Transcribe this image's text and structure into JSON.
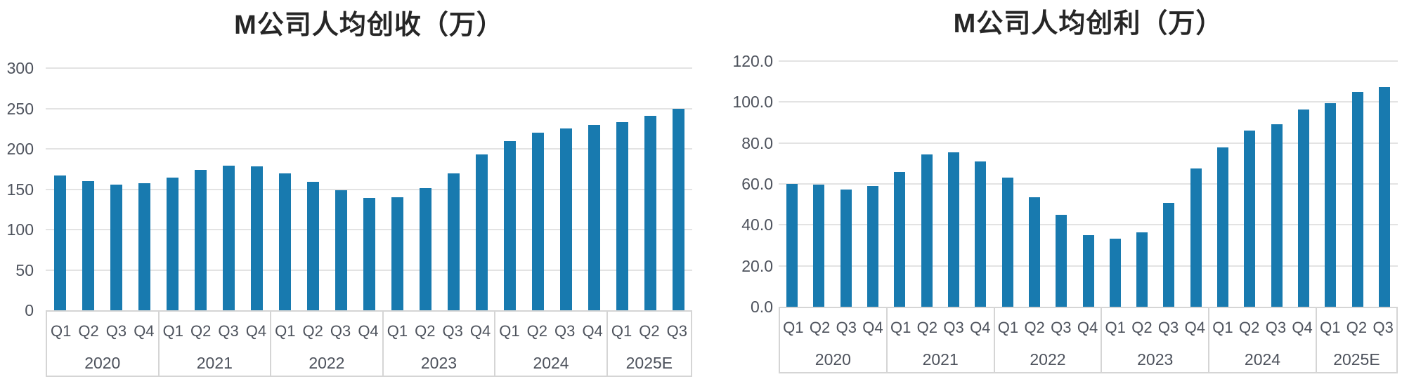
{
  "colors": {
    "bar": "#187aaf",
    "gridline": "#e3e3e3",
    "axis_border": "#d5d5d5",
    "axis_text": "#4d525c",
    "title_text": "#262626"
  },
  "charts": [
    {
      "title": "M公司人均创收（万）",
      "chart_data": {
        "type": "bar",
        "title": "M公司人均创收（万）",
        "ylim": [
          0,
          300
        ],
        "ytick_step": 50,
        "ytick_labels": [
          "0",
          "50",
          "100",
          "150",
          "200",
          "250",
          "300"
        ],
        "grid": true,
        "legend": "none",
        "bar_color": "#187aaf",
        "groups": [
          {
            "year": "2020",
            "quarters": [
              "Q1",
              "Q2",
              "Q3",
              "Q4"
            ],
            "values": [
              167,
              160,
              156,
              157
            ]
          },
          {
            "year": "2021",
            "quarters": [
              "Q1",
              "Q2",
              "Q3",
              "Q4"
            ],
            "values": [
              164,
              174,
              179,
              178
            ]
          },
          {
            "year": "2022",
            "quarters": [
              "Q1",
              "Q2",
              "Q3",
              "Q4"
            ],
            "values": [
              170,
              159,
              149,
              139
            ]
          },
          {
            "year": "2023",
            "quarters": [
              "Q1",
              "Q2",
              "Q3",
              "Q4"
            ],
            "values": [
              140,
              151,
              170,
              193
            ]
          },
          {
            "year": "2024",
            "quarters": [
              "Q1",
              "Q2",
              "Q3",
              "Q4"
            ],
            "values": [
              210,
              220,
              225,
              230
            ]
          },
          {
            "year": "2025E",
            "quarters": [
              "Q1",
              "Q2",
              "Q3"
            ],
            "values": [
              233,
              241,
              250
            ]
          }
        ]
      }
    },
    {
      "title": "M公司人均创利（万）",
      "chart_data": {
        "type": "bar",
        "title": "M公司人均创利（万）",
        "ylim": [
          0,
          120
        ],
        "ytick_step": 20,
        "ytick_labels": [
          "0.0",
          "20.0",
          "40.0",
          "60.0",
          "80.0",
          "100.0",
          "120.0"
        ],
        "grid": true,
        "legend": "none",
        "bar_color": "#187aaf",
        "groups": [
          {
            "year": "2020",
            "quarters": [
              "Q1",
              "Q2",
              "Q3",
              "Q4"
            ],
            "values": [
              60.0,
              59.5,
              57.3,
              59.0
            ]
          },
          {
            "year": "2021",
            "quarters": [
              "Q1",
              "Q2",
              "Q3",
              "Q4"
            ],
            "values": [
              65.8,
              74.3,
              75.3,
              70.9
            ]
          },
          {
            "year": "2022",
            "quarters": [
              "Q1",
              "Q2",
              "Q3",
              "Q4"
            ],
            "values": [
              63.1,
              53.4,
              45.0,
              35.0
            ]
          },
          {
            "year": "2023",
            "quarters": [
              "Q1",
              "Q2",
              "Q3",
              "Q4"
            ],
            "values": [
              33.4,
              36.4,
              50.8,
              67.6
            ]
          },
          {
            "year": "2024",
            "quarters": [
              "Q1",
              "Q2",
              "Q3",
              "Q4"
            ],
            "values": [
              78.0,
              86.0,
              89.2,
              96.4
            ]
          },
          {
            "year": "2025E",
            "quarters": [
              "Q1",
              "Q2",
              "Q3"
            ],
            "values": [
              99.3,
              104.9,
              107.4
            ]
          }
        ]
      }
    }
  ]
}
